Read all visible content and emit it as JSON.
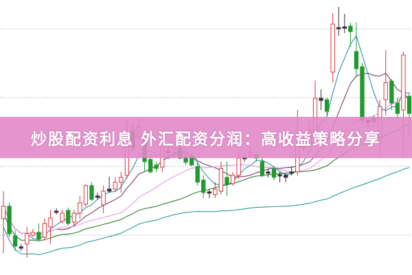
{
  "banner": {
    "title": "炒股配资利息 外汇配资分润：高收益策略分享"
  },
  "colors": {
    "bull": "#d9333f",
    "bear": "#1f9a2e",
    "doji": "#3a2a3a",
    "banner": "#e086c6",
    "grid": "#9a9a9a",
    "ma_lines": [
      "#2e8fa8",
      "#7a3a6a",
      "#e59ae0",
      "#2f7a2a",
      "#2a9a9a"
    ]
  },
  "chart_data": {
    "type": "candlestick",
    "title": "",
    "xlabel": "",
    "ylabel": "",
    "ylim": [
      0,
      400
    ],
    "grid": true,
    "legend": "none",
    "candles": [
      [
        82,
        122,
        32,
        100
      ],
      [
        100,
        105,
        55,
        60
      ],
      [
        57,
        65,
        35,
        42
      ],
      [
        40,
        45,
        35,
        41
      ],
      [
        45,
        70,
        25,
        60
      ],
      [
        58,
        67,
        55,
        62
      ],
      [
        62,
        75,
        50,
        52
      ],
      [
        55,
        82,
        50,
        75
      ],
      [
        70,
        95,
        45,
        83
      ],
      [
        92,
        97,
        88,
        93
      ],
      [
        78,
        95,
        75,
        90
      ],
      [
        94,
        98,
        72,
        75
      ],
      [
        77,
        95,
        70,
        90
      ],
      [
        90,
        115,
        82,
        105
      ],
      [
        103,
        132,
        100,
        130
      ],
      [
        130,
        135,
        108,
        110
      ],
      [
        114,
        120,
        110,
        115
      ],
      [
        102,
        130,
        90,
        122
      ],
      [
        122,
        143,
        120,
        125
      ],
      [
        125,
        142,
        122,
        135
      ],
      [
        135,
        150,
        120,
        142
      ],
      [
        145,
        225,
        140,
        190
      ],
      [
        210,
        220,
        180,
        185
      ],
      [
        200,
        227,
        195,
        215
      ],
      [
        200,
        205,
        150,
        165
      ],
      [
        168,
        175,
        148,
        150
      ],
      [
        160,
        165,
        150,
        155
      ],
      [
        157,
        200,
        150,
        195
      ],
      [
        178,
        190,
        172,
        180
      ],
      [
        184,
        193,
        170,
        190
      ],
      [
        185,
        190,
        168,
        170
      ],
      [
        172,
        175,
        160,
        164
      ],
      [
        172,
        178,
        158,
        160
      ],
      [
        158,
        165,
        130,
        135
      ],
      [
        138,
        145,
        112,
        120
      ],
      [
        120,
        125,
        112,
        121
      ],
      [
        117,
        135,
        112,
        125
      ],
      [
        122,
        165,
        117,
        155
      ],
      [
        142,
        165,
        115,
        132
      ],
      [
        133,
        150,
        130,
        145
      ],
      [
        145,
        178,
        140,
        170
      ],
      [
        170,
        175,
        165,
        171
      ],
      [
        174,
        185,
        170,
        178
      ],
      [
        175,
        180,
        165,
        170
      ],
      [
        165,
        170,
        142,
        145
      ],
      [
        148,
        155,
        142,
        150
      ],
      [
        155,
        158,
        138,
        142
      ],
      [
        145,
        150,
        135,
        146
      ],
      [
        142,
        148,
        135,
        145
      ],
      [
        148,
        158,
        145,
        150
      ],
      [
        150,
        240,
        145,
        190
      ],
      [
        185,
        200,
        180,
        195
      ],
      [
        190,
        225,
        185,
        210
      ],
      [
        200,
        283,
        195,
        257
      ],
      [
        257,
        270,
        240,
        254
      ],
      [
        255,
        258,
        230,
        238
      ],
      [
        295,
        381,
        280,
        365
      ],
      [
        358,
        390,
        348,
        360
      ],
      [
        360,
        380,
        352,
        361
      ],
      [
        362,
        367,
        332,
        354
      ],
      [
        325,
        367,
        288,
        300
      ],
      [
        303,
        308,
        220,
        225
      ],
      [
        225,
        228,
        215,
        222
      ],
      [
        228,
        232,
        215,
        223
      ],
      [
        200,
        255,
        170,
        245
      ],
      [
        255,
        327,
        232,
        280
      ],
      [
        282,
        285,
        240,
        250
      ],
      [
        250,
        258,
        228,
        235
      ],
      [
        240,
        325,
        170,
        320
      ],
      [
        260,
        265,
        200,
        235
      ]
    ]
  }
}
